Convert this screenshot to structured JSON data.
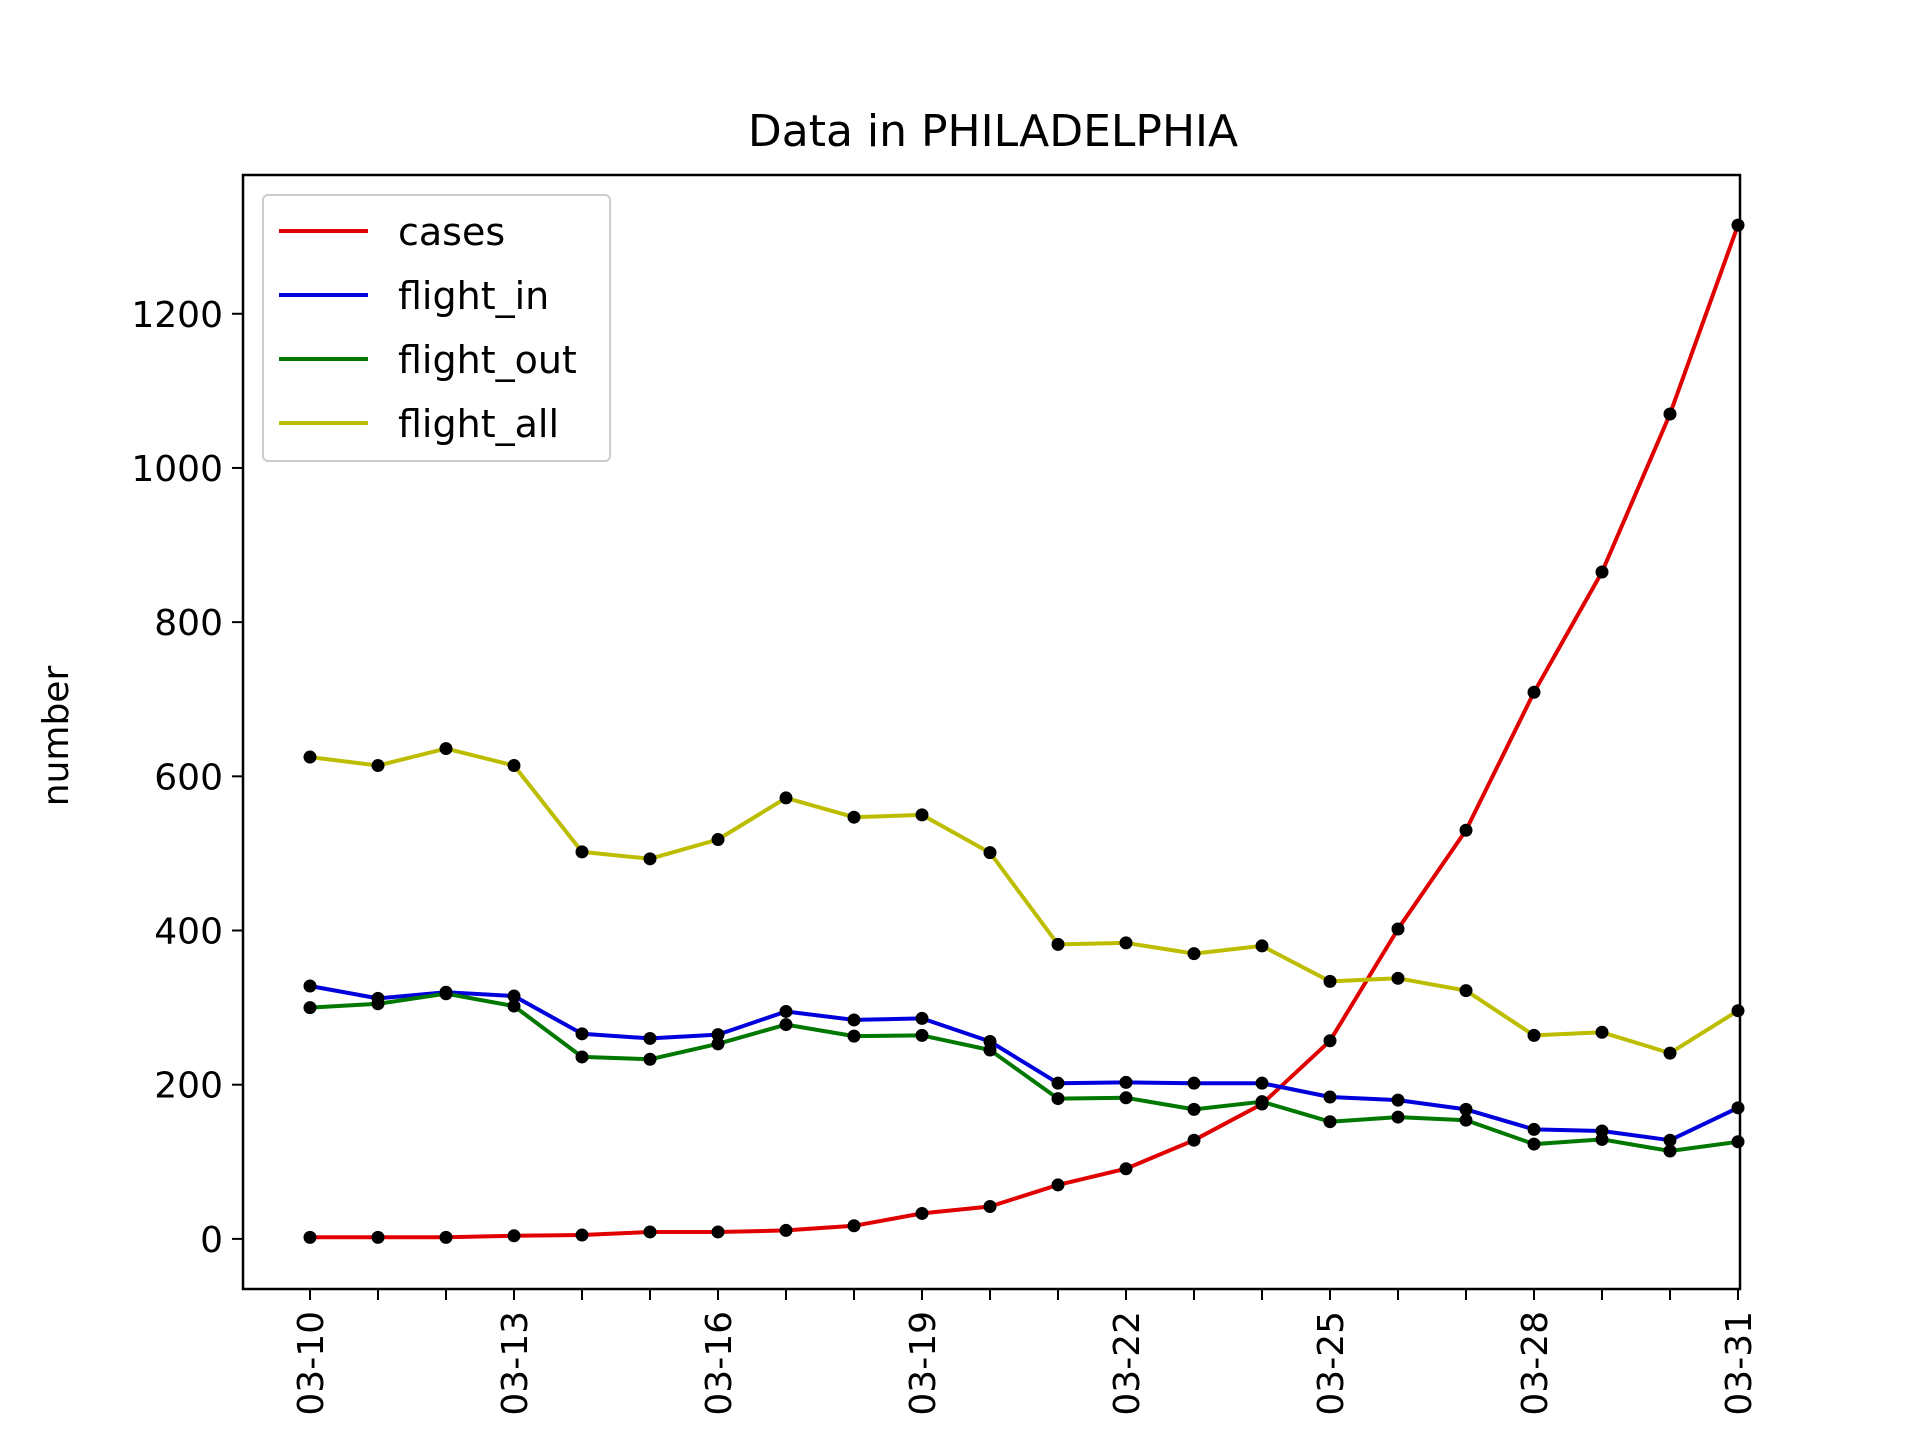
{
  "chart_data": {
    "type": "line",
    "title": "Data in PHILADELPHIA",
    "xlabel": "",
    "ylabel": "number",
    "x": [
      "03-10",
      "03-11",
      "03-12",
      "03-13",
      "03-14",
      "03-15",
      "03-16",
      "03-17",
      "03-18",
      "03-19",
      "03-20",
      "03-21",
      "03-22",
      "03-23",
      "03-24",
      "03-25",
      "03-26",
      "03-27",
      "03-28",
      "03-29",
      "03-30",
      "03-31"
    ],
    "x_tick_labels": [
      "03-10",
      "03-13",
      "03-16",
      "03-19",
      "03-22",
      "03-25",
      "03-28",
      "03-31"
    ],
    "ylim": [
      -65,
      1380
    ],
    "y_ticks": [
      0,
      200,
      400,
      600,
      800,
      1000,
      1200
    ],
    "legend_position": "top-left",
    "series": [
      {
        "name": "cases",
        "color": "#e00000",
        "values": [
          2,
          2,
          2,
          4,
          5,
          9,
          9,
          11,
          17,
          33,
          42,
          70,
          91,
          128,
          175,
          257,
          402,
          530,
          709,
          865,
          1070,
          1315
        ]
      },
      {
        "name": "flight_in",
        "color": "#0000dd",
        "values": [
          328,
          312,
          320,
          315,
          266,
          260,
          265,
          295,
          284,
          286,
          256,
          202,
          203,
          202,
          202,
          184,
          180,
          168,
          142,
          140,
          128,
          170
        ]
      },
      {
        "name": "flight_out",
        "color": "#007800",
        "values": [
          300,
          305,
          318,
          302,
          236,
          233,
          253,
          278,
          263,
          264,
          245,
          182,
          183,
          168,
          178,
          152,
          158,
          154,
          123,
          129,
          114,
          126
        ]
      },
      {
        "name": "flight_all",
        "color": "#bdbd00",
        "values": [
          625,
          614,
          636,
          614,
          502,
          493,
          518,
          572,
          547,
          550,
          501,
          382,
          384,
          370,
          380,
          334,
          338,
          322,
          264,
          268,
          241,
          296
        ]
      }
    ]
  }
}
